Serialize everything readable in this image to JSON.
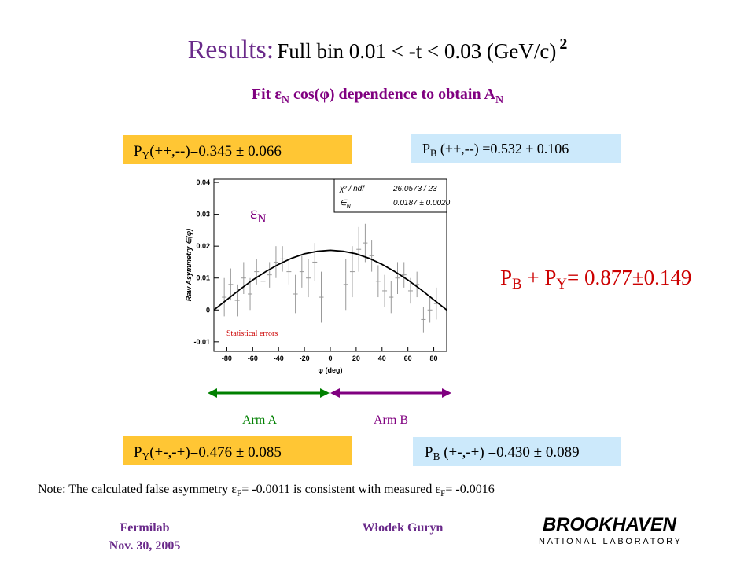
{
  "title": {
    "lead": "Results:",
    "main": "Full bin 0.01 < -t < 0.03 (GeV/c)",
    "sup": "2"
  },
  "subtitle": [
    "Fit ε",
    "N",
    " cos(φ) dependence to obtain A",
    "N"
  ],
  "polarizations": [
    [
      "P",
      "Y",
      "(++,--)=0.345 ± 0.066"
    ],
    [
      "P",
      "B",
      " (++,--) =0.532 ± 0.106"
    ],
    [
      "P",
      "Y",
      "(+-,-+)=0.476 ± 0.085"
    ],
    [
      "P",
      "B",
      " (+-,-+) =0.430 ± 0.089"
    ]
  ],
  "sum": [
    "P",
    "B",
    " + P",
    "Y",
    "= 0.877±0.149"
  ],
  "arms": [
    "Arm A",
    "Arm B"
  ],
  "note": [
    "Note: The calculated false asymmetry ε",
    "F",
    "= -0.0011 is consistent with measured  ε",
    "F",
    "= -0.0016"
  ],
  "footer": {
    "lab": "Fermilab",
    "date": "Nov. 30, 2005",
    "author": "Włodek Guryn",
    "logo": "BROOKHAVEN",
    "logo_sub": "NATIONAL LABORATORY"
  },
  "chart_data": {
    "type": "scatter",
    "x_label": "φ (deg)",
    "y_label": "Raw Asymmetry ∈(φ)",
    "annotation": [
      "ε",
      "N"
    ],
    "note": "Statistical errors",
    "stats": [
      {
        "name": "χ² / ndf",
        "value": "26.0573 / 23"
      },
      {
        "name": "∈",
        "sub": "N",
        "value": "0.0187 ± 0.0020"
      }
    ],
    "x": [
      -82,
      -77,
      -72,
      -67,
      -62,
      -57,
      -52,
      -47,
      -42,
      -37,
      -32,
      -27,
      -22,
      -17,
      -12,
      -7,
      12,
      17,
      22,
      27,
      32,
      37,
      42,
      47,
      52,
      57,
      62,
      67,
      72,
      77,
      82
    ],
    "values": [
      0.004,
      0.008,
      0.003,
      0.01,
      0.005,
      0.012,
      0.009,
      0.011,
      0.015,
      0.016,
      0.012,
      0.005,
      0.012,
      0.01,
      0.015,
      0.004,
      0.008,
      0.012,
      0.019,
      0.021,
      0.017,
      0.009,
      0.006,
      0.004,
      0.01,
      0.011,
      0.006,
      0.008,
      -0.003,
      0.0,
      0.002
    ],
    "errors": [
      0.006,
      0.005,
      0.005,
      0.005,
      0.005,
      0.004,
      0.004,
      0.004,
      0.005,
      0.004,
      0.004,
      0.006,
      0.005,
      0.006,
      0.006,
      0.008,
      0.008,
      0.008,
      0.007,
      0.006,
      0.005,
      0.005,
      0.005,
      0.005,
      0.005,
      0.004,
      0.004,
      0.004,
      0.004,
      0.004,
      0.005
    ],
    "color": "#999999",
    "fit": {
      "x": [
        -90,
        -80,
        -70,
        -60,
        -50,
        -40,
        -30,
        -20,
        -10,
        0,
        10,
        20,
        30,
        40,
        50,
        60,
        70,
        80,
        90
      ],
      "values": [
        0,
        0.0032,
        0.0064,
        0.0094,
        0.012,
        0.0143,
        0.0162,
        0.0176,
        0.0184,
        0.0187,
        0.0184,
        0.0176,
        0.0162,
        0.0143,
        0.012,
        0.0094,
        0.0064,
        0.0032,
        0
      ],
      "color": "#000000"
    },
    "xlim": [
      -90,
      90
    ],
    "ylim": [
      -0.013,
      0.041
    ],
    "xticks": [
      -80,
      -60,
      -40,
      -20,
      0,
      20,
      40,
      60,
      80
    ],
    "yticks": [
      -0.01,
      0,
      0.01,
      0.02,
      0.03,
      0.04
    ]
  }
}
